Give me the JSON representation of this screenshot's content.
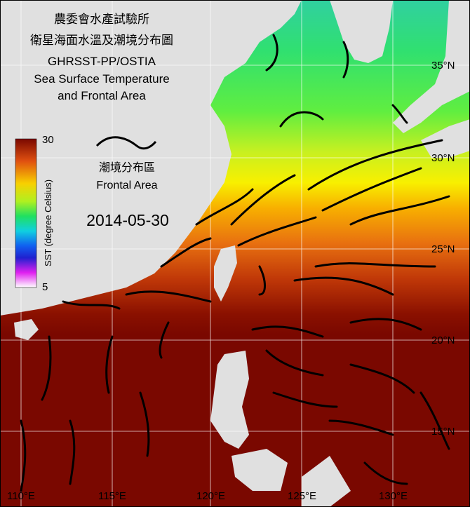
{
  "title": [
    "農委會水產試驗所",
    "衛星海面水溫及潮境分布圖",
    "GHRSST-PP/OSTIA",
    "Sea Surface Temperature",
    "and Frontal Area"
  ],
  "colorbar": {
    "label": "SST (degree Celsius)",
    "ticks": [
      30,
      5
    ]
  },
  "legend": {
    "label_zh": "潮境分布區",
    "label_en": "Frontal Area"
  },
  "date": "2014-05-30",
  "lat_labels": [
    "35°N",
    "30°N",
    "25°N",
    "20°N",
    "15°N"
  ],
  "lon_labels": [
    "110°E",
    "115°E",
    "120°E",
    "125°E",
    "130°E"
  ]
}
